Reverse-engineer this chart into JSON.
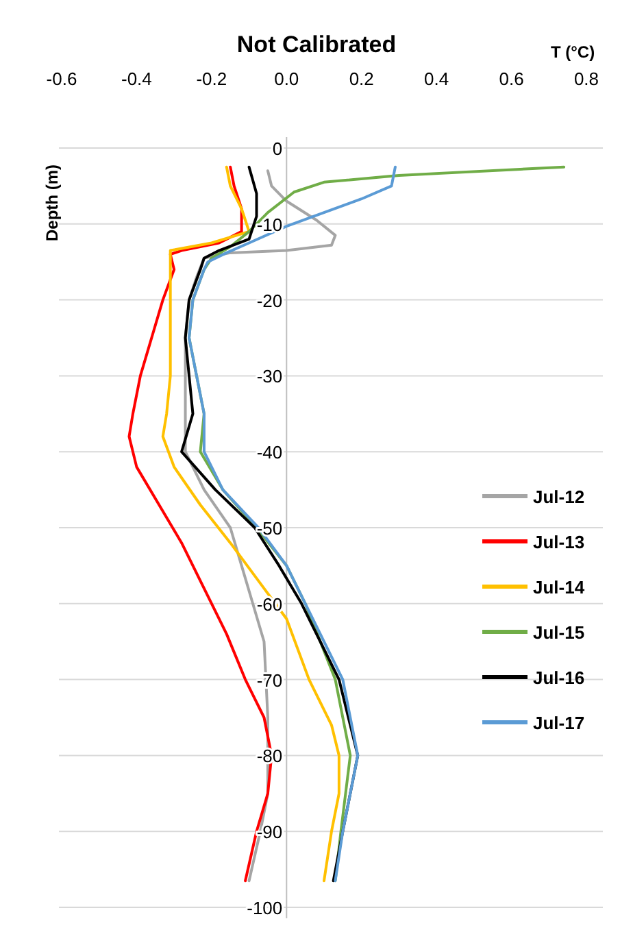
{
  "chart_data": {
    "type": "line",
    "title": "Not Calibrated",
    "xlabel": "T (°C)",
    "ylabel": "Depth (m)",
    "xlim": [
      -0.6,
      0.8
    ],
    "xticks": [
      -0.6,
      -0.4,
      -0.2,
      {
        "value": 0,
        "label": "0.0"
      },
      0.2,
      0.4,
      0.6,
      0.8
    ],
    "ylim": [
      -100,
      0
    ],
    "yticks": [
      0,
      -10,
      -20,
      -30,
      -40,
      -50,
      -60,
      -70,
      -80,
      -90,
      -100
    ],
    "grid": "y",
    "legend": "right",
    "line_style": "solid",
    "marker": "none",
    "series": [
      {
        "name": "Jul-12",
        "color": "#a5a5a5",
        "x": [
          -0.05,
          -0.04,
          0.0,
          0.08,
          0.13,
          0.12,
          0.0,
          -0.15,
          -0.22,
          -0.24,
          -0.26,
          -0.27,
          -0.27,
          -0.27,
          -0.27,
          -0.22,
          -0.15,
          -0.12,
          -0.09,
          -0.06,
          -0.055,
          -0.05,
          -0.05,
          -0.05,
          -0.07,
          -0.1
        ],
        "values": [
          -3,
          -5,
          -7,
          -9.5,
          -11.5,
          -12.8,
          -13.5,
          -13.8,
          -14.5,
          -17,
          -20,
          -25,
          -30,
          -35,
          -40,
          -45,
          -50,
          -55,
          -60,
          -65,
          -70,
          -75,
          -80,
          -85,
          -90,
          -96.5
        ]
      },
      {
        "name": "Jul-13",
        "color": "#ff0000",
        "x": [
          -0.15,
          -0.14,
          -0.12,
          -0.12,
          -0.18,
          -0.28,
          -0.31,
          -0.3,
          -0.33,
          -0.36,
          -0.39,
          -0.41,
          -0.42,
          -0.4,
          -0.34,
          -0.28,
          -0.22,
          -0.16,
          -0.11,
          -0.06,
          -0.04,
          -0.05,
          -0.08,
          -0.11
        ],
        "values": [
          -2.5,
          -5,
          -8,
          -11,
          -12.5,
          -13.5,
          -14,
          -16,
          -20,
          -25,
          -30,
          -35,
          -38,
          -42,
          -47,
          -52,
          -58,
          -64,
          -70,
          -75,
          -80,
          -85,
          -90,
          -96.5
        ]
      },
      {
        "name": "Jul-14",
        "color": "#ffc000",
        "x": [
          -0.16,
          -0.15,
          -0.12,
          -0.1,
          -0.2,
          -0.31,
          -0.31,
          -0.31,
          -0.31,
          -0.31,
          -0.32,
          -0.33,
          -0.3,
          -0.23,
          -0.15,
          -0.06,
          0.0,
          0.06,
          0.12,
          0.14,
          0.14,
          0.12,
          0.1
        ],
        "values": [
          -2.5,
          -5,
          -8,
          -11,
          -12.5,
          -13.5,
          -16,
          -20,
          -25,
          -30,
          -35,
          -38,
          -42,
          -47,
          -52,
          -58,
          -62,
          -70,
          -76,
          -80,
          -85,
          -90,
          -96.5
        ]
      },
      {
        "name": "Jul-15",
        "color": "#70ad47",
        "x": [
          0.74,
          0.3,
          0.1,
          0.02,
          -0.05,
          -0.1,
          -0.15,
          -0.2,
          -0.22,
          -0.25,
          -0.26,
          -0.24,
          -0.22,
          -0.23,
          -0.17,
          -0.08,
          0.0,
          0.05,
          0.13,
          0.17,
          0.145,
          0.13
        ],
        "values": [
          -2.5,
          -3.6,
          -4.5,
          -5.8,
          -8.5,
          -11,
          -13,
          -14.5,
          -16,
          -20,
          -25,
          -30,
          -35,
          -40,
          -45,
          -50,
          -55,
          -60,
          -70,
          -80,
          -90,
          -96.5
        ]
      },
      {
        "name": "Jul-16",
        "color": "#000000",
        "x": [
          -0.1,
          -0.08,
          -0.08,
          -0.1,
          -0.18,
          -0.22,
          -0.23,
          -0.26,
          -0.27,
          -0.26,
          -0.25,
          -0.28,
          -0.19,
          -0.085,
          -0.02,
          0.04,
          0.14,
          0.19,
          0.15,
          0.125
        ],
        "values": [
          -2.5,
          -6,
          -9,
          -12,
          -13.5,
          -14.5,
          -16,
          -20,
          -25,
          -30,
          -35,
          -40,
          -45,
          -50,
          -55,
          -60,
          -70,
          -80,
          -90,
          -96.5
        ]
      },
      {
        "name": "Jul-17",
        "color": "#5b9bd5",
        "x": [
          0.29,
          0.28,
          0.2,
          0.1,
          0.0,
          -0.1,
          -0.16,
          -0.21,
          -0.22,
          -0.25,
          -0.26,
          -0.24,
          -0.22,
          -0.22,
          -0.17,
          -0.075,
          0.0,
          0.05,
          0.15,
          0.19,
          0.15,
          0.13
        ],
        "values": [
          -2.5,
          -5,
          -6.7,
          -8.5,
          -10.3,
          -12.5,
          -13.8,
          -15,
          -16,
          -20,
          -25,
          -30,
          -35,
          -40,
          -45,
          -50,
          -55,
          -60,
          -70,
          -80,
          -90,
          -96.5
        ]
      }
    ]
  }
}
